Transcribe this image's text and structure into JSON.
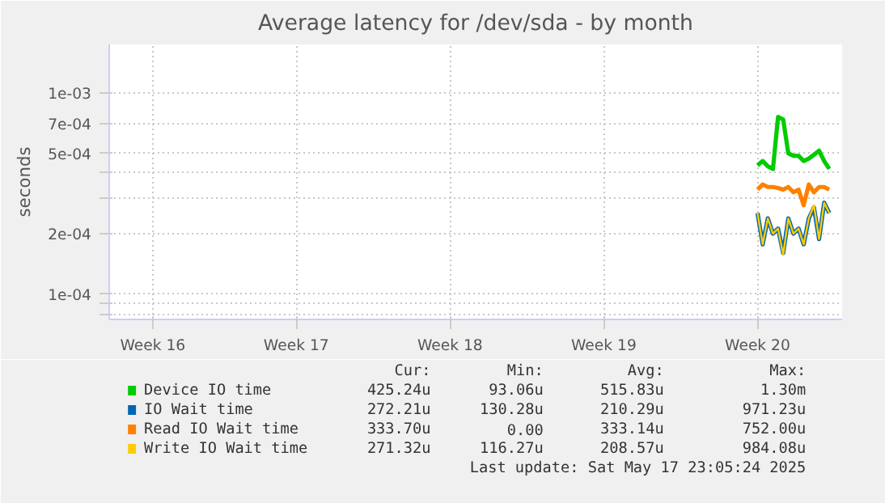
{
  "chart_data": {
    "type": "line",
    "title": "Average latency for /dev/sda - by month",
    "ylabel": "seconds",
    "log": "y",
    "grid": true,
    "legend": "bottom",
    "categories": [
      null,
      null,
      null,
      null,
      null,
      null,
      null,
      null,
      "Week 16",
      null,
      null,
      null,
      null,
      null,
      null,
      null,
      null,
      null,
      null,
      null,
      null,
      null,
      null,
      null,
      null,
      null,
      null,
      null,
      null,
      null,
      null,
      null,
      null,
      null,
      null,
      null,
      "Week 17",
      null,
      null,
      null,
      null,
      null,
      null,
      null,
      null,
      null,
      null,
      null,
      null,
      null,
      null,
      null,
      null,
      null,
      null,
      null,
      null,
      null,
      null,
      null,
      null,
      null,
      null,
      null,
      null,
      null,
      "Week 18",
      null,
      null,
      null,
      null,
      null,
      null,
      null,
      null,
      null,
      null,
      null,
      null,
      null,
      null,
      null,
      null,
      null,
      null,
      null,
      null,
      null,
      null,
      null,
      null,
      null,
      null,
      null,
      null,
      null,
      "Week 19",
      null,
      null,
      null,
      null,
      null,
      null,
      null,
      null,
      null,
      null,
      null,
      null,
      null,
      null,
      null,
      null,
      null,
      null,
      null,
      null,
      null,
      null,
      null,
      null,
      null,
      null,
      null,
      null,
      null,
      "Week 20",
      null,
      null,
      null,
      null,
      null,
      null,
      null,
      null,
      null,
      null,
      null,
      null,
      null,
      null,
      null,
      null
    ],
    "ylim": [
      7.5e-05,
      0.00174
    ],
    "yticks": [
      {
        "value": 8e-05,
        "label": null
      },
      {
        "value": 9e-05,
        "label": null
      },
      {
        "value": 0.0001,
        "label": "1e-04"
      },
      {
        "value": 0.0002,
        "label": "2e-04"
      },
      {
        "value": 0.0003,
        "label": null
      },
      {
        "value": 0.0004,
        "label": null
      },
      {
        "value": 0.0005,
        "label": "5e-04"
      },
      {
        "value": 0.0007,
        "label": "7e-04"
      },
      {
        "value": 0.001,
        "label": "1e-03"
      }
    ],
    "series": [
      {
        "name": "Device IO time",
        "color": "#00cc00",
        "values": [
          null,
          null,
          null,
          null,
          null,
          null,
          null,
          null,
          null,
          null,
          null,
          null,
          null,
          null,
          null,
          null,
          null,
          null,
          null,
          null,
          null,
          null,
          null,
          null,
          null,
          null,
          null,
          null,
          null,
          null,
          null,
          null,
          null,
          null,
          null,
          null,
          null,
          null,
          null,
          null,
          null,
          null,
          null,
          null,
          null,
          null,
          null,
          null,
          null,
          null,
          null,
          null,
          null,
          null,
          null,
          null,
          null,
          null,
          null,
          null,
          null,
          null,
          null,
          null,
          null,
          null,
          null,
          null,
          null,
          null,
          null,
          null,
          null,
          null,
          null,
          null,
          null,
          null,
          null,
          null,
          null,
          null,
          null,
          null,
          null,
          null,
          null,
          null,
          null,
          null,
          null,
          null,
          null,
          null,
          null,
          null,
          null,
          null,
          null,
          null,
          null,
          null,
          null,
          null,
          null,
          null,
          null,
          null,
          null,
          null,
          null,
          null,
          null,
          null,
          null,
          null,
          null,
          null,
          null,
          null,
          null,
          null,
          null,
          null,
          null,
          null,
          0.000437,
          0.000459,
          0.000432,
          0.000419,
          0.00076,
          0.000738,
          0.000501,
          0.000487,
          0.000487,
          0.000459,
          0.000472,
          0.000493,
          0.000517,
          0.000459,
          0.000419,
          null,
          null
        ]
      },
      {
        "name": "IO Wait time",
        "color": "#0066b3",
        "values": [
          null,
          null,
          null,
          null,
          null,
          null,
          null,
          null,
          null,
          null,
          null,
          null,
          null,
          null,
          null,
          null,
          null,
          null,
          null,
          null,
          null,
          null,
          null,
          null,
          null,
          null,
          null,
          null,
          null,
          null,
          null,
          null,
          null,
          null,
          null,
          null,
          null,
          null,
          null,
          null,
          null,
          null,
          null,
          null,
          null,
          null,
          null,
          null,
          null,
          null,
          null,
          null,
          null,
          null,
          null,
          null,
          null,
          null,
          null,
          null,
          null,
          null,
          null,
          null,
          null,
          null,
          null,
          null,
          null,
          null,
          null,
          null,
          null,
          null,
          null,
          null,
          null,
          null,
          null,
          null,
          null,
          null,
          null,
          null,
          null,
          null,
          null,
          null,
          null,
          null,
          null,
          null,
          null,
          null,
          null,
          null,
          null,
          null,
          null,
          null,
          null,
          null,
          null,
          null,
          null,
          null,
          null,
          null,
          null,
          null,
          null,
          null,
          null,
          null,
          null,
          null,
          null,
          null,
          null,
          null,
          null,
          null,
          null,
          null,
          null,
          null,
          0.000253,
          0.000177,
          0.000238,
          0.0002,
          0.000212,
          0.00016,
          0.000238,
          0.0002,
          0.000212,
          0.000177,
          0.000238,
          0.00027,
          0.000188,
          0.000285,
          0.000253,
          null,
          null
        ]
      },
      {
        "name": "Read IO Wait time",
        "color": "#ff8000",
        "values": [
          null,
          null,
          null,
          null,
          null,
          null,
          null,
          null,
          null,
          null,
          null,
          null,
          null,
          null,
          null,
          null,
          null,
          null,
          null,
          null,
          null,
          null,
          null,
          null,
          null,
          null,
          null,
          null,
          null,
          null,
          null,
          null,
          null,
          null,
          null,
          null,
          null,
          null,
          null,
          null,
          null,
          null,
          null,
          null,
          null,
          null,
          null,
          null,
          null,
          null,
          null,
          null,
          null,
          null,
          null,
          null,
          null,
          null,
          null,
          null,
          null,
          null,
          null,
          null,
          null,
          null,
          null,
          null,
          null,
          null,
          null,
          null,
          null,
          null,
          null,
          null,
          null,
          null,
          null,
          null,
          null,
          null,
          null,
          null,
          null,
          null,
          null,
          null,
          null,
          null,
          null,
          null,
          null,
          null,
          null,
          null,
          null,
          null,
          null,
          null,
          null,
          null,
          null,
          null,
          null,
          null,
          null,
          null,
          null,
          null,
          null,
          null,
          null,
          null,
          null,
          null,
          null,
          null,
          null,
          null,
          null,
          null,
          null,
          null,
          null,
          null,
          0.000331,
          0.000351,
          0.000341,
          0.000341,
          0.000337,
          0.000331,
          0.000341,
          0.000321,
          0.000331,
          0.000277,
          0.000351,
          0.000321,
          0.000341,
          0.000341,
          0.000331,
          null,
          null
        ]
      },
      {
        "name": "Write IO Wait time",
        "color": "#ffcc00",
        "values": [
          null,
          null,
          null,
          null,
          null,
          null,
          null,
          null,
          null,
          null,
          null,
          null,
          null,
          null,
          null,
          null,
          null,
          null,
          null,
          null,
          null,
          null,
          null,
          null,
          null,
          null,
          null,
          null,
          null,
          null,
          null,
          null,
          null,
          null,
          null,
          null,
          null,
          null,
          null,
          null,
          null,
          null,
          null,
          null,
          null,
          null,
          null,
          null,
          null,
          null,
          null,
          null,
          null,
          null,
          null,
          null,
          null,
          null,
          null,
          null,
          null,
          null,
          null,
          null,
          null,
          null,
          null,
          null,
          null,
          null,
          null,
          null,
          null,
          null,
          null,
          null,
          null,
          null,
          null,
          null,
          null,
          null,
          null,
          null,
          null,
          null,
          null,
          null,
          null,
          null,
          null,
          null,
          null,
          null,
          null,
          null,
          null,
          null,
          null,
          null,
          null,
          null,
          null,
          null,
          null,
          null,
          null,
          null,
          null,
          null,
          null,
          null,
          null,
          null,
          null,
          null,
          null,
          null,
          null,
          null,
          null,
          null,
          null,
          null,
          null,
          null,
          0.000253,
          0.000177,
          0.000238,
          0.0002,
          0.000212,
          0.000157,
          0.000238,
          0.0002,
          0.000212,
          0.000177,
          0.000238,
          0.000277,
          0.000188,
          0.000285,
          0.000253,
          null,
          null
        ]
      }
    ],
    "annotations": [
      "Cur:",
      "Min:",
      "Avg:",
      "Max:",
      "425.24u",
      "93.06u",
      "515.83u",
      "1.30m",
      "272.21u",
      "130.28u",
      "210.29u",
      "971.23u",
      "333.70u",
      "0.00",
      "333.14u",
      "752.00u",
      "271.32u",
      "116.27u",
      "208.57u",
      "984.08u",
      "Last update: Sat May 17 23:05:24 2025"
    ]
  }
}
